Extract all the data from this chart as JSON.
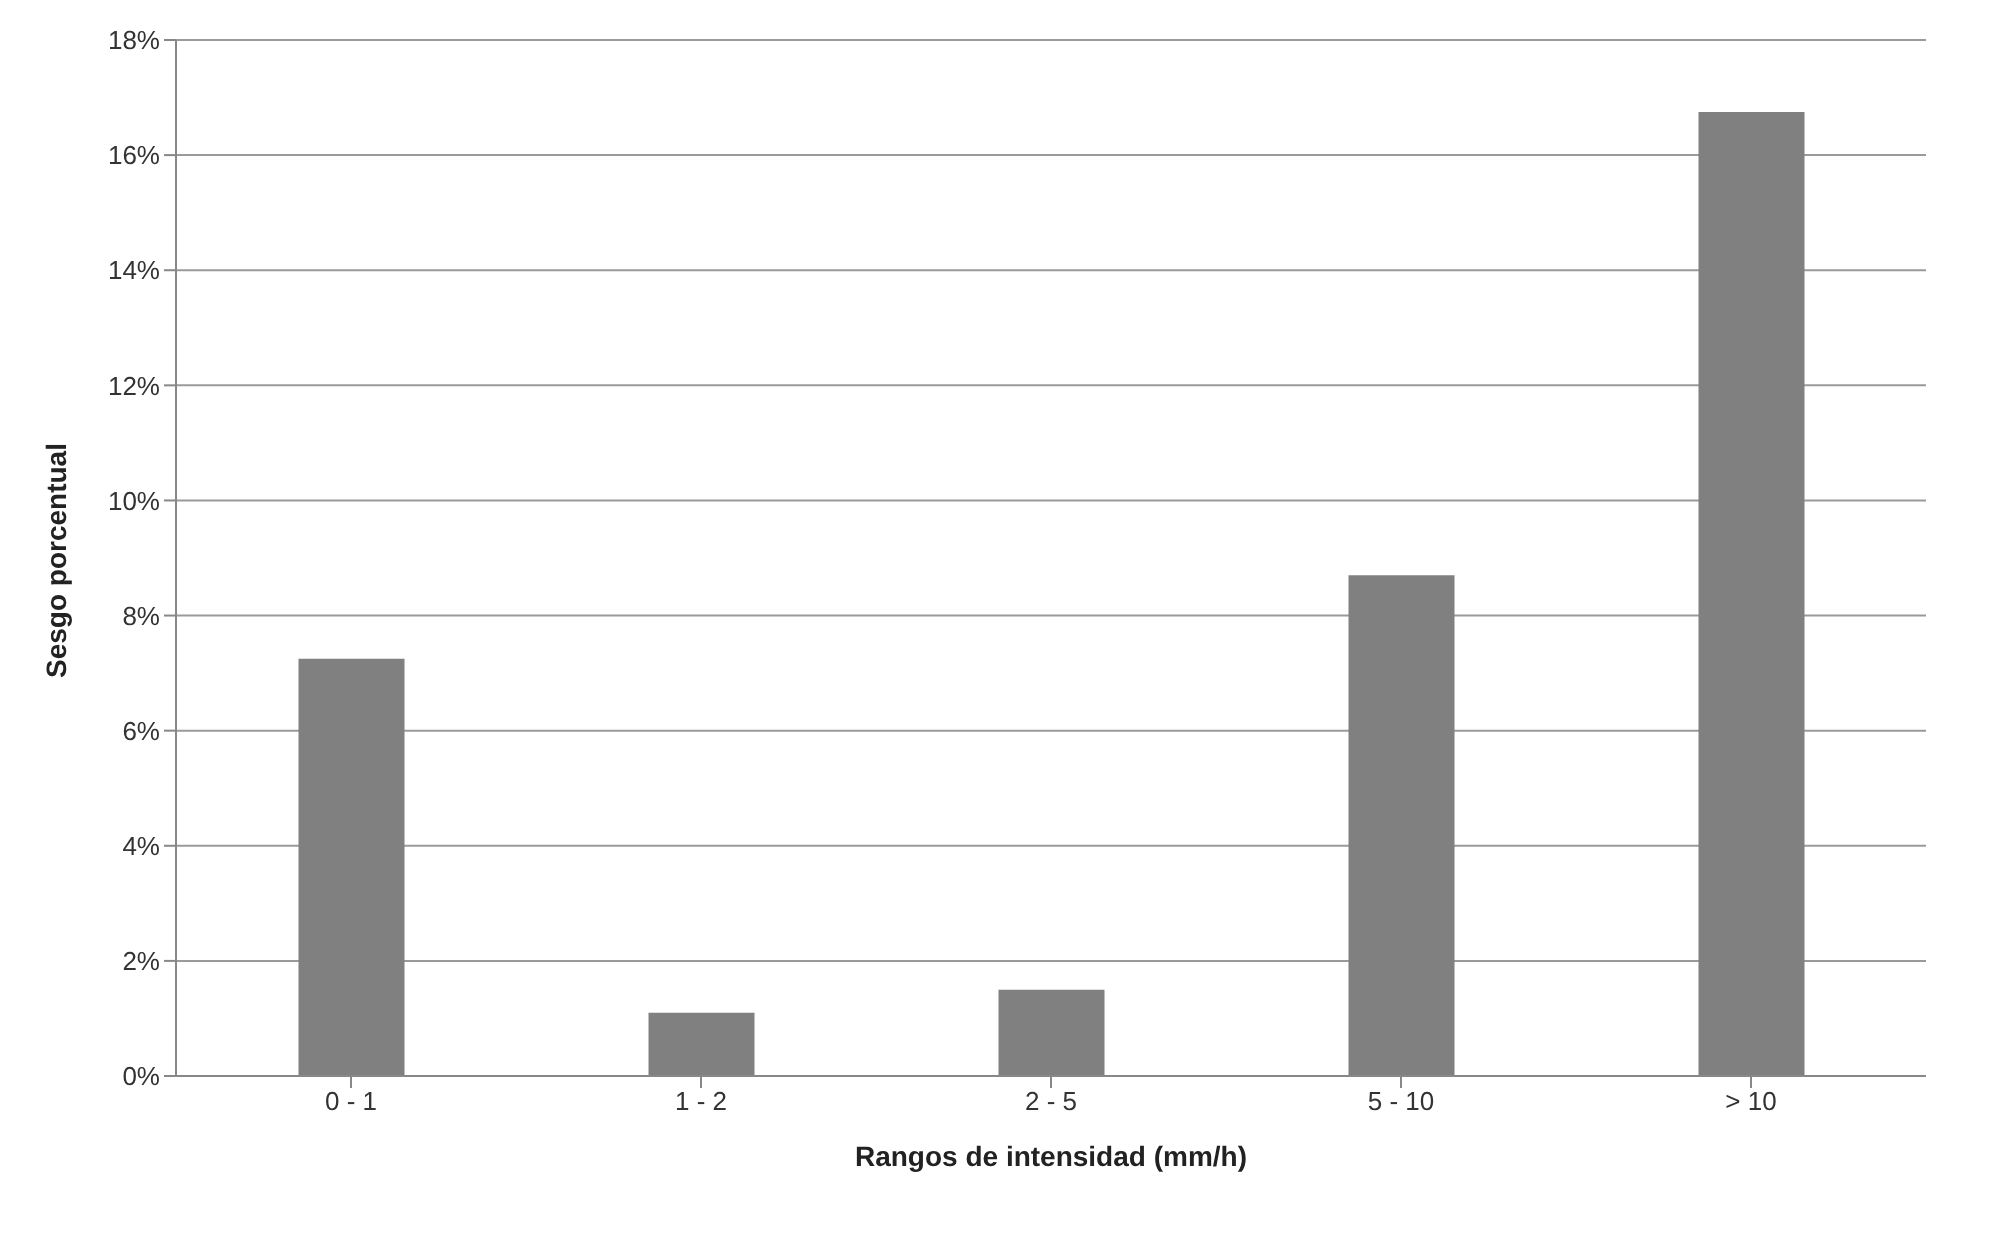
{
  "chart_data": {
    "type": "bar",
    "xlabel": "Rangos de intensidad (mm/h)",
    "ylabel": "Sesgo porcentual",
    "categories": [
      "0 - 1",
      "1 - 2",
      "2 - 5",
      "5 - 10",
      "> 10"
    ],
    "values": [
      7.25,
      1.1,
      1.5,
      8.7,
      16.75
    ],
    "color": "#808080",
    "ylim": [
      0,
      18
    ],
    "yticks": [
      {
        "value": 0,
        "label": "0%"
      },
      {
        "value": 2,
        "label": "2%"
      },
      {
        "value": 4,
        "label": "4%"
      },
      {
        "value": 6,
        "label": "6%"
      },
      {
        "value": 8,
        "label": "8%"
      },
      {
        "value": 10,
        "label": "10%"
      },
      {
        "value": 12,
        "label": "12%"
      },
      {
        "value": 14,
        "label": "14%"
      },
      {
        "value": 16,
        "label": "16%"
      },
      {
        "value": 18,
        "label": "18%"
      }
    ],
    "grid": "y",
    "legend": false
  }
}
